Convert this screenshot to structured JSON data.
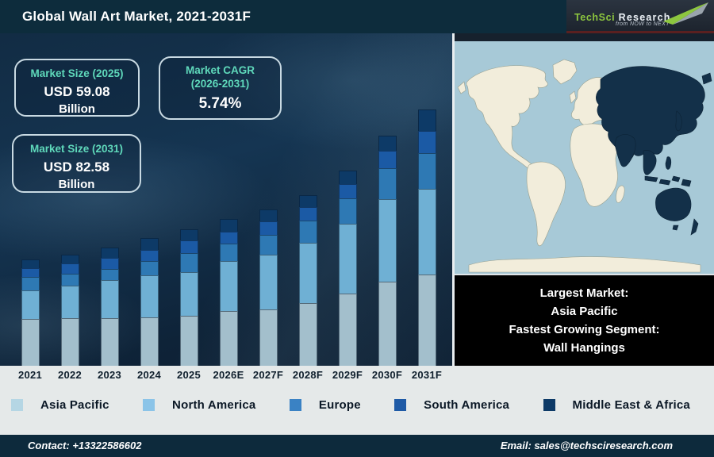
{
  "header": {
    "title": "Global Wall Art Market, 2021-2031F",
    "logo": {
      "brand_green": "TechSci",
      "brand_silver": "Research",
      "tagline": "from NOW to NEXT"
    }
  },
  "stats": {
    "box1": {
      "title": "Market Size (2025)",
      "value": "USD 59.08",
      "unit": "Billion"
    },
    "box2": {
      "title_line1": "Market CAGR",
      "title_line2": "(2026-2031)",
      "value": "5.74%"
    },
    "box3": {
      "title": "Market Size (2031)",
      "value": "USD 82.58",
      "unit": "Billion"
    }
  },
  "chart_data": {
    "type": "bar",
    "stacked": true,
    "title": "Global Wall Art Market, 2021-2031F",
    "categories": [
      "2021",
      "2022",
      "2023",
      "2024",
      "2025",
      "2026E",
      "2027F",
      "2028F",
      "2029F",
      "2030F",
      "2031F"
    ],
    "stack_order": "bottom_to_top",
    "units": "relative bar-segment heights in px (chart has no value axis)",
    "series": [
      {
        "name": "Asia Pacific",
        "color": "#a3bfcc",
        "values": [
          59,
          60,
          60,
          61,
          63,
          69,
          71,
          79,
          91,
          106,
          115
        ]
      },
      {
        "name": "North America",
        "color": "#6fb0d4",
        "values": [
          36,
          41,
          48,
          53,
          55,
          63,
          69,
          76,
          88,
          104,
          108
        ]
      },
      {
        "name": "Europe",
        "color": "#2e79b4",
        "values": [
          17,
          15,
          14,
          18,
          24,
          22,
          25,
          28,
          32,
          39,
          45
        ]
      },
      {
        "name": "South America",
        "color": "#1b5aa5",
        "values": [
          11,
          13,
          14,
          14,
          16,
          15,
          17,
          17,
          18,
          22,
          28
        ]
      },
      {
        "name": "Middle East & Africa",
        "color": "#0d3a67",
        "values": [
          11,
          11,
          13,
          15,
          14,
          16,
          15,
          15,
          17,
          19,
          27
        ]
      }
    ],
    "known_points": {
      "market_size_2025_usd_billion": 59.08,
      "market_size_2031_usd_billion": 82.58,
      "cagr_2026_2031_percent": 5.74
    },
    "legend_position": "bottom",
    "grid": false
  },
  "legend": {
    "items": [
      {
        "label": "Asia Pacific",
        "color": "#b5d6e4"
      },
      {
        "label": "North America",
        "color": "#8bc4e8"
      },
      {
        "label": "Europe",
        "color": "#3a82c4"
      },
      {
        "label": "South America",
        "color": "#1e5aa6"
      },
      {
        "label": "Middle East & Africa",
        "color": "#0d3a67"
      }
    ]
  },
  "callout": {
    "lines": [
      "Largest Market:",
      "Asia Pacific",
      "Fastest Growing Segment:",
      "Wall Hangings"
    ]
  },
  "footer": {
    "contact": "Contact: +13322586602",
    "email": "Email: sales@techsciresearch.com"
  }
}
